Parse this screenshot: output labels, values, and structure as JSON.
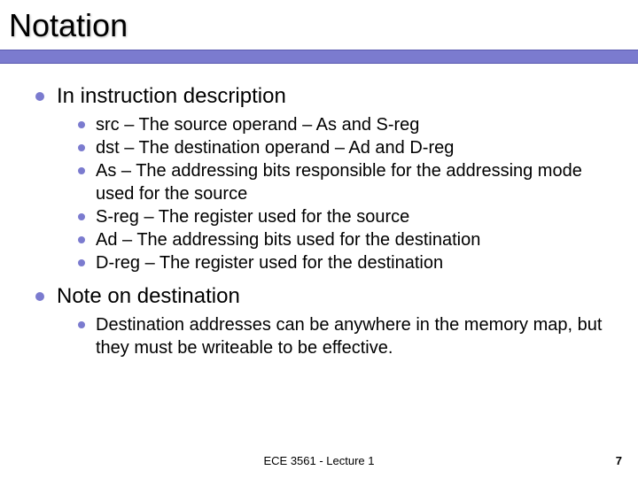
{
  "slide": {
    "title": "Notation",
    "footer": "ECE 3561 - Lecture 1",
    "page_number": "7",
    "bullets": [
      {
        "text": "In instruction description",
        "sub": [
          "src – The source operand – As and S-reg",
          "dst – The destination operand – Ad and D-reg",
          "As – The addressing bits responsible for the addressing mode used for the source",
          "S-reg – The register used for the source",
          "Ad – The addressing bits used for the destination",
          "D-reg – The register used for the destination"
        ]
      },
      {
        "text": "Note on destination",
        "sub": [
          "Destination addresses can be anywhere in the memory map, but they must be writeable to be effective."
        ]
      }
    ]
  },
  "style": {
    "title_fontsize": 36,
    "bullet_fontsize": 24,
    "sub_fontsize": 20,
    "footer_fontsize": 13,
    "accent_color": "#7b7bcf",
    "bg_color": "#ffffff",
    "text_color": "#000000"
  }
}
